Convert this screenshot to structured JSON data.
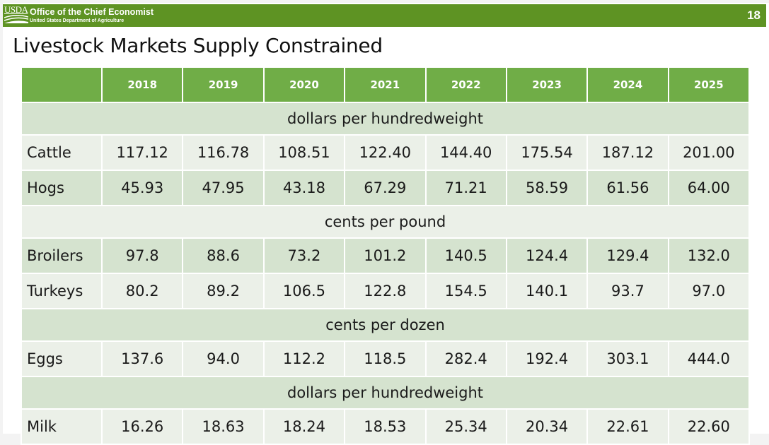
{
  "header": {
    "logo_text": "USDA",
    "office": "Office of the Chief Economist",
    "department": "United States Department of Agriculture",
    "page_number": "18"
  },
  "title": "Livestock Markets Supply Constrained",
  "colors": {
    "banner": "#5e9323",
    "table_header": "#70ad47",
    "row_dark": "#d5e3cf",
    "row_light": "#ebf0e8"
  },
  "table": {
    "years": [
      "2018",
      "2019",
      "2020",
      "2021",
      "2022",
      "2023",
      "2024",
      "2025"
    ],
    "units": {
      "cattle_hogs": "dollars per hundredweight",
      "poultry": "cents per pound",
      "eggs": "cents per dozen",
      "milk": "dollars per hundredweight"
    },
    "rows": {
      "cattle": {
        "label": "Cattle",
        "values": [
          "117.12",
          "116.78",
          "108.51",
          "122.40",
          "144.40",
          "175.54",
          "187.12",
          "201.00"
        ]
      },
      "hogs": {
        "label": "Hogs",
        "values": [
          "45.93",
          "47.95",
          "43.18",
          "67.29",
          "71.21",
          "58.59",
          "61.56",
          "64.00"
        ]
      },
      "broilers": {
        "label": "Broilers",
        "values": [
          "97.8",
          "88.6",
          "73.2",
          "101.2",
          "140.5",
          "124.4",
          "129.4",
          "132.0"
        ]
      },
      "turkeys": {
        "label": "Turkeys",
        "values": [
          "80.2",
          "89.2",
          "106.5",
          "122.8",
          "154.5",
          "140.1",
          "93.7",
          "97.0"
        ]
      },
      "eggs": {
        "label": "Eggs",
        "values": [
          "137.6",
          "94.0",
          "112.2",
          "118.5",
          "282.4",
          "192.4",
          "303.1",
          "444.0"
        ]
      },
      "milk": {
        "label": "Milk",
        "values": [
          "16.26",
          "18.63",
          "18.24",
          "18.53",
          "25.34",
          "20.34",
          "22.61",
          "22.60"
        ]
      }
    }
  }
}
